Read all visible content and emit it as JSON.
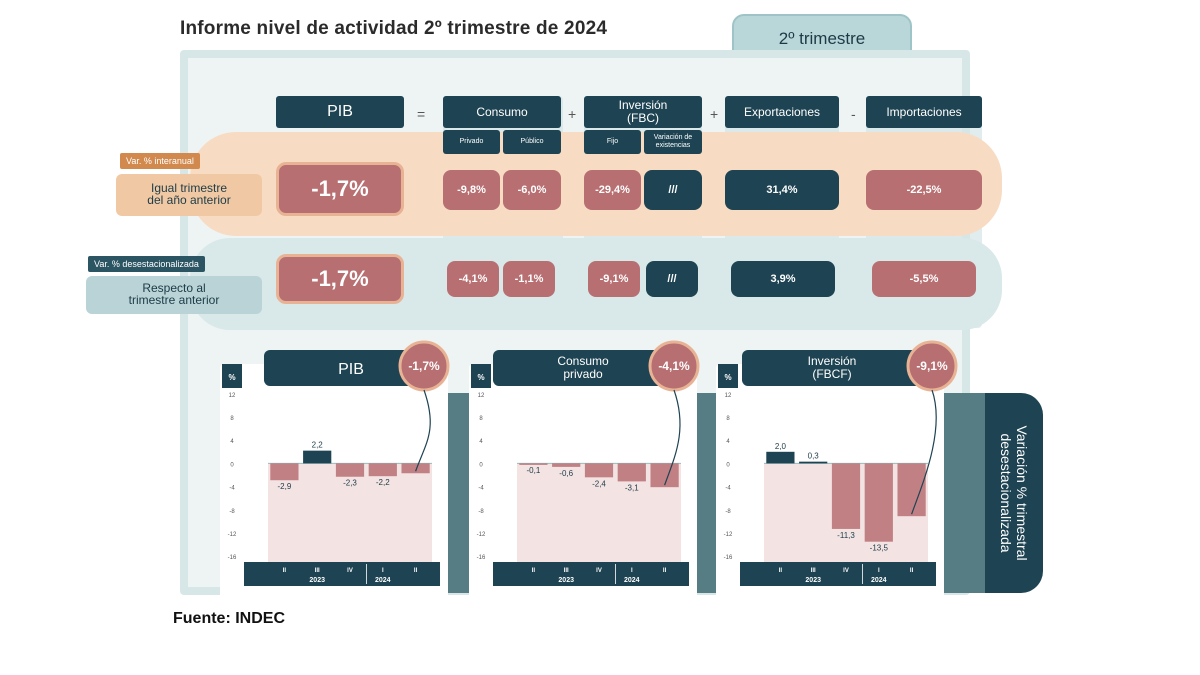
{
  "title": "Informe nivel de actividad 2º trimestre de 2024",
  "period": "2º trimestre\nde 2024",
  "source": "Fuente: INDEC",
  "equation": {
    "pib": "PIB",
    "ops": [
      "=",
      "+",
      "+",
      "-"
    ],
    "consumo": {
      "label": "Consumo",
      "sub": [
        "Privado",
        "Público"
      ]
    },
    "inversion": {
      "label": "Inversión\n(FBC)",
      "sub": [
        "Fijo",
        "Variación de\nexistencias"
      ]
    },
    "exportaciones": "Exportaciones",
    "importaciones": "Importaciones"
  },
  "rows": {
    "interanual": {
      "tag": "Var. % interanual",
      "desc": "Igual trimestre\ndel año anterior",
      "pib": "-1,7%",
      "privado": "-9,8%",
      "publico": "-6,0%",
      "fijo": "-29,4%",
      "existencias": "///",
      "export": "31,4%",
      "import": "-22,5%"
    },
    "desest": {
      "tag": "Var. % desestacionalizada",
      "desc": "Respecto al\ntrimestre anterior",
      "pib": "-1,7%",
      "privado": "-4,1%",
      "publico": "-1,1%",
      "fijo": "-9,1%",
      "existencias": "///",
      "export": "3,9%",
      "import": "-5,5%"
    }
  },
  "side_label": "Variación % trimestral\ndesestacionalizada",
  "chart_data": [
    {
      "type": "bar",
      "title": "PIB",
      "badge": "-1,7%",
      "ylabel": "%",
      "categories": [
        "II",
        "III",
        "IV",
        "I",
        "II"
      ],
      "year_labels": [
        "2023",
        "2024"
      ],
      "values": [
        -2.9,
        2.2,
        -2.3,
        -2.2,
        -1.7
      ],
      "value_labels": [
        "-2,9",
        "2,2",
        "-2,3",
        "-2,2",
        ""
      ],
      "yticks": [
        12,
        8,
        4,
        0,
        -4,
        -8,
        -12,
        -16
      ],
      "ylim": [
        -17,
        13
      ]
    },
    {
      "type": "bar",
      "title": "Consumo\nprivado",
      "badge": "-4,1%",
      "ylabel": "%",
      "categories": [
        "II",
        "III",
        "IV",
        "I",
        "II"
      ],
      "year_labels": [
        "2023",
        "2024"
      ],
      "values": [
        -0.1,
        -0.6,
        -2.4,
        -3.1,
        -4.1
      ],
      "value_labels": [
        "-0,1",
        "-0,6",
        "-2,4",
        "-3,1",
        ""
      ],
      "yticks": [
        12,
        8,
        4,
        0,
        -4,
        -8,
        -12,
        -16
      ],
      "ylim": [
        -17,
        13
      ]
    },
    {
      "type": "bar",
      "title": "Inversión\n(FBCF)",
      "badge": "-9,1%",
      "ylabel": "%",
      "categories": [
        "II",
        "III",
        "IV",
        "I",
        "II"
      ],
      "year_labels": [
        "2023",
        "2024"
      ],
      "values": [
        2.0,
        0.3,
        -11.3,
        -13.5,
        -9.1
      ],
      "value_labels": [
        "2,0",
        "0,3",
        "-11,3",
        "-13,5",
        ""
      ],
      "yticks": [
        12,
        8,
        4,
        0,
        -4,
        -8,
        -12,
        -16
      ],
      "ylim": [
        -17,
        13
      ]
    }
  ],
  "colors": {
    "teal_dark": "#1e4352",
    "rose": "#b76f72",
    "neg_zone": "#f3e3e3",
    "pos_zone": "#ffffff"
  }
}
